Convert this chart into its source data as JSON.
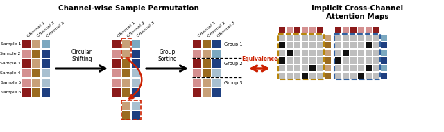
{
  "title_left": "Channel-wise Sample Permutation",
  "title_right": "Implicit Cross-Channel\nAttention Maps",
  "sample_labels": [
    "Sample 1",
    "Sample 2",
    "Sample 3",
    "Sample 4",
    "Sample 5",
    "Sample 6"
  ],
  "channel_labels": [
    "Channel 1",
    "Channel 2",
    "Channel 3"
  ],
  "group_labels": [
    "Group 1",
    "Group 2",
    "Group 3"
  ],
  "arrow_label1": "Circular\nShifting",
  "arrow_label2": "Group\nSorting",
  "equiv_label": "Equivalence",
  "grid1_colors": [
    [
      "#8B1A1A",
      "#C8A078",
      "#7BA8C0"
    ],
    [
      "#D49090",
      "#9B6B20",
      "#1E3F80"
    ],
    [
      "#8B1A1A",
      "#C8A078",
      "#1E3F80"
    ],
    [
      "#D49090",
      "#9B6B20",
      "#A8C0D0"
    ],
    [
      "#D49090",
      "#C8A078",
      "#A8C0D0"
    ],
    [
      "#8B1A1A",
      "#9B6B20",
      "#1E3F80"
    ]
  ],
  "grid2_colors": [
    [
      "#8B1A1A",
      "#C8A078",
      "#7BA8C0"
    ],
    [
      "#D49090",
      "#C8A078",
      "#1E3F80"
    ],
    [
      "#8B1A1A",
      "#9B6B20",
      "#1E3F80"
    ],
    [
      "#D49090",
      "#9B6B20",
      "#A8C0D0"
    ],
    [
      "#D49090",
      "#C8A078",
      "#A8C0D0"
    ],
    [
      "#8B1A1A",
      "#9B6B20",
      "#1E3F80"
    ]
  ],
  "grid3_colors": [
    [
      "#8B1A1A",
      "#9B6B20",
      "#1E3F80"
    ],
    [
      "#D49090",
      "#C8A078",
      "#7BA8C0"
    ],
    [
      "#8B1A1A",
      "#9B6B20",
      "#1E3F80"
    ],
    [
      "#D49090",
      "#9B6B20",
      "#A8C0D0"
    ],
    [
      "#D49090",
      "#C8A078",
      "#A8C0D0"
    ],
    [
      "#8B1A1A",
      "#C8A078",
      "#1E3F80"
    ]
  ],
  "attn_header_left": [
    "#8B1A1A",
    "#D49090",
    "#8B1A1A",
    "#D49090",
    "#D49090",
    "#8B1A1A",
    "#D49090"
  ],
  "attn_side_left": [
    "#C8A078",
    "#9B6B20",
    "#C8A078",
    "#9B6B20",
    "#C8A078",
    "#9B6B20"
  ],
  "attn_header_right": [
    "#8B1A1A",
    "#D49090",
    "#8B1A1A",
    "#D49090",
    "#D49090",
    "#8B1A1A",
    "#D49090"
  ],
  "attn_side_right": [
    "#7BA8C0",
    "#1E3F80",
    "#7BA8C0",
    "#1E3F80",
    "#7BA8C0",
    "#1E3F80"
  ],
  "attn_diag_left": [
    6,
    0,
    1,
    0,
    4,
    3
  ],
  "attn_diag_right": [
    6,
    4,
    1,
    0,
    4,
    3
  ],
  "cell_gray": "#BEBEBE",
  "cell_black": "#101010",
  "border_gold": "#B8860B",
  "border_blue": "#3060A0",
  "border_red": "#CC2000",
  "bg_color": "#FFFFFF",
  "fig_width": 6.4,
  "fig_height": 1.91
}
